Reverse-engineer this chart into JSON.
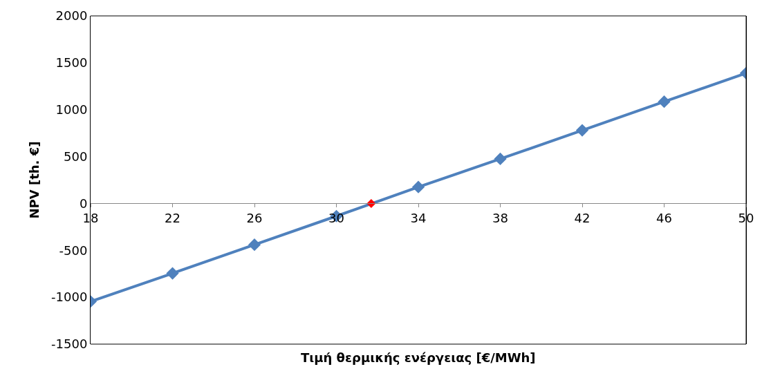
{
  "chart_data": {
    "type": "line",
    "xlabel": "Τιμή θερμικής ενέργειας [€/MWh]",
    "ylabel": "NPV [th. €]",
    "series": [
      {
        "color": "#4f81bd",
        "x": [
          18,
          22,
          26,
          30,
          34,
          38,
          42,
          46,
          50
        ],
        "values": [
          -1045,
          -745,
          -440,
          -135,
          175,
          475,
          780,
          1085,
          1390
        ]
      },
      {
        "type": "scatter",
        "color": "#ff0000",
        "x": [
          31.7
        ],
        "values": [
          0
        ]
      }
    ],
    "xlim": [
      18,
      50
    ],
    "xticks": [
      18,
      22,
      26,
      30,
      34,
      38,
      42,
      46,
      50
    ],
    "ylim": [
      -1500,
      2000
    ],
    "yticks": [
      -1500,
      -1000,
      -500,
      0,
      500,
      1000,
      1500,
      2000
    ],
    "marker": "diamond",
    "line_style": "solid"
  }
}
